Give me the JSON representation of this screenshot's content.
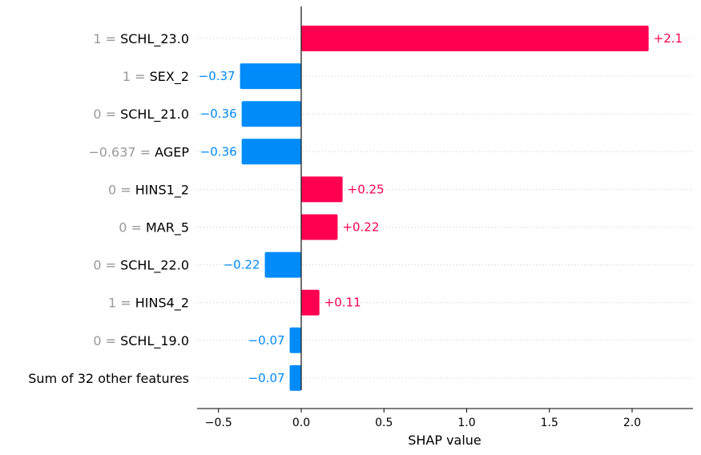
{
  "chart_data": {
    "type": "bar",
    "orientation": "horizontal",
    "xlabel": "SHAP value",
    "xlim": [
      -0.62,
      2.36
    ],
    "xticks": [
      -0.5,
      0.0,
      0.5,
      1.0,
      1.5,
      2.0
    ],
    "xtick_labels": [
      "−0.5",
      "0.0",
      "0.5",
      "1.0",
      "1.5",
      "2.0"
    ],
    "grid": "horizontal dotted",
    "zero_line": true,
    "colors": {
      "positive": "#ff0051",
      "negative": "#008bfb",
      "feature_value": "#999999",
      "feature_name": "#000000"
    },
    "bars": [
      {
        "feature_value": "1 =",
        "feature_name": "SCHL_23.0",
        "value": 2.1,
        "value_label": "+2.1"
      },
      {
        "feature_value": "1 =",
        "feature_name": "SEX_2",
        "value": -0.37,
        "value_label": "−0.37"
      },
      {
        "feature_value": "0 =",
        "feature_name": "SCHL_21.0",
        "value": -0.36,
        "value_label": "−0.36"
      },
      {
        "feature_value": "−0.637 =",
        "feature_name": "AGEP",
        "value": -0.36,
        "value_label": "−0.36"
      },
      {
        "feature_value": "0 =",
        "feature_name": "HINS1_2",
        "value": 0.25,
        "value_label": "+0.25"
      },
      {
        "feature_value": "0 =",
        "feature_name": "MAR_5",
        "value": 0.22,
        "value_label": "+0.22"
      },
      {
        "feature_value": "0 =",
        "feature_name": "SCHL_22.0",
        "value": -0.22,
        "value_label": "−0.22"
      },
      {
        "feature_value": "1 =",
        "feature_name": "HINS4_2",
        "value": 0.11,
        "value_label": "+0.11"
      },
      {
        "feature_value": "0 =",
        "feature_name": "SCHL_19.0",
        "value": -0.07,
        "value_label": "−0.07"
      },
      {
        "feature_value": "",
        "feature_name": "Sum of 32 other features",
        "value": -0.07,
        "value_label": "−0.07"
      }
    ]
  }
}
